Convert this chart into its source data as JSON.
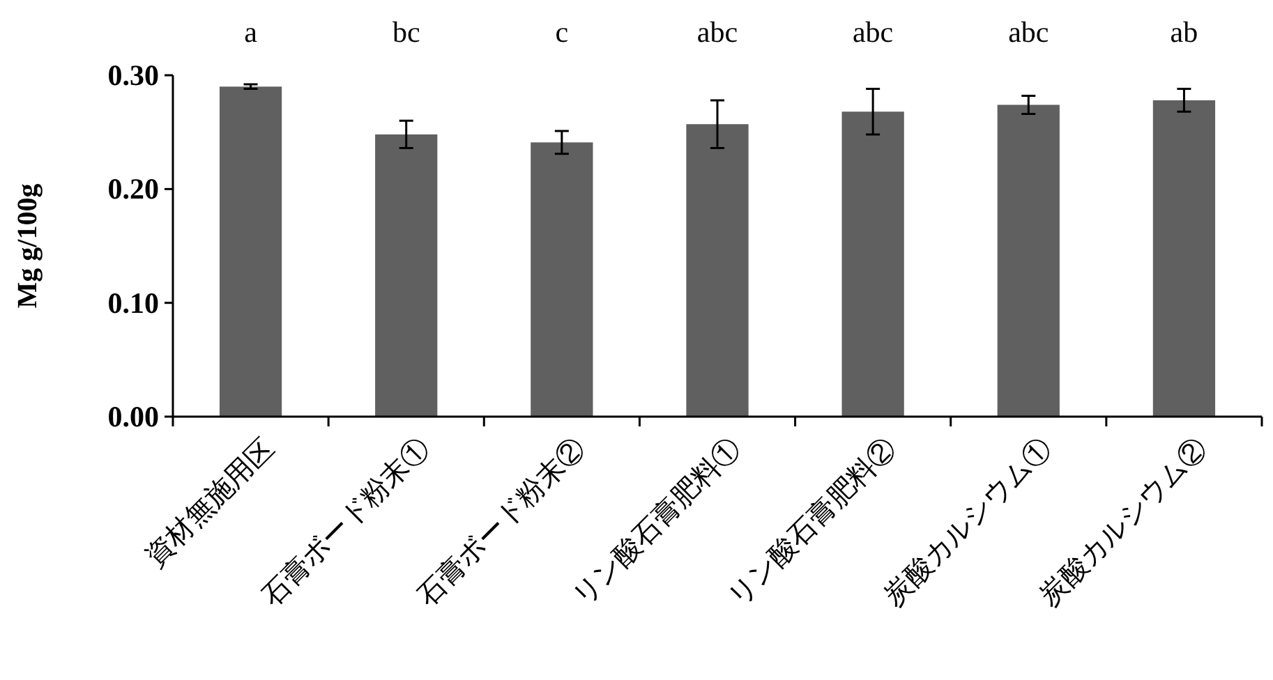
{
  "chart_data": {
    "type": "bar",
    "ylabel": "Mg g/100g",
    "categories": [
      "資材無施用区",
      "石膏ボード粉末①",
      "石膏ボード粉末②",
      "リン酸石膏肥料①",
      "リン酸石膏肥料②",
      "炭酸カルシウム①",
      "炭酸カルシウム②"
    ],
    "values": [
      0.29,
      0.248,
      0.241,
      0.257,
      0.268,
      0.274,
      0.278
    ],
    "errors": [
      0.002,
      0.012,
      0.01,
      0.021,
      0.02,
      0.008,
      0.01
    ],
    "color": "#606060",
    "ylim": [
      0,
      0.3
    ],
    "yticks": [
      {
        "value": 0,
        "label": "0.00"
      },
      {
        "value": 0.1,
        "label": "0.10"
      },
      {
        "value": 0.2,
        "label": "0.20"
      },
      {
        "value": 0.3,
        "label": "0.30"
      }
    ],
    "grid": false,
    "annotations": [
      "a",
      "bc",
      "c",
      "abc",
      "abc",
      "abc",
      "ab"
    ]
  }
}
